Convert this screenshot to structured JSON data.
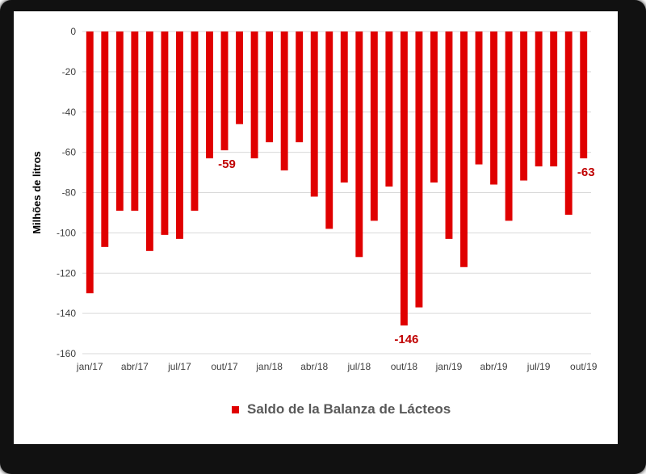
{
  "chart_data": {
    "type": "bar",
    "ylabel": "Milhões de litros",
    "ylim": [
      -160,
      0
    ],
    "yticks": [
      0,
      -20,
      -40,
      -60,
      -80,
      -100,
      -120,
      -140,
      -160
    ],
    "grid": true,
    "legend_position": "bottom",
    "color": "#e00000",
    "categories": [
      "jan/17",
      "fev/17",
      "mar/17",
      "abr/17",
      "mai/17",
      "jun/17",
      "jul/17",
      "ago/17",
      "set/17",
      "out/17",
      "nov/17",
      "dez/17",
      "jan/18",
      "fev/18",
      "mar/18",
      "abr/18",
      "mai/18",
      "jun/18",
      "jul/18",
      "ago/18",
      "set/18",
      "out/18",
      "nov/18",
      "dez/18",
      "jan/19",
      "fev/19",
      "mar/19",
      "abr/19",
      "mai/19",
      "jun/19",
      "jul/19",
      "ago/19",
      "set/19",
      "out/19"
    ],
    "tick_labels": [
      "jan/17",
      "abr/17",
      "jul/17",
      "out/17",
      "jan/18",
      "abr/18",
      "jul/18",
      "out/18",
      "jan/19",
      "abr/19",
      "jul/19",
      "out/19"
    ],
    "series": [
      {
        "name": "Saldo de la Balanza de Lácteos",
        "values": [
          -130,
          -107,
          -89,
          -89,
          -109,
          -101,
          -103,
          -89,
          -63,
          -59,
          -46,
          -63,
          -55,
          -69,
          -55,
          -82,
          -98,
          -75,
          -112,
          -94,
          -77,
          -146,
          -137,
          -75,
          -103,
          -117,
          -66,
          -76,
          -94,
          -74,
          -67,
          -67,
          -91,
          -63
        ]
      }
    ],
    "annotations": [
      {
        "category": "out/17",
        "text": "-59"
      },
      {
        "category": "out/18",
        "text": "-146"
      },
      {
        "category": "out/19",
        "text": "-63"
      }
    ]
  }
}
